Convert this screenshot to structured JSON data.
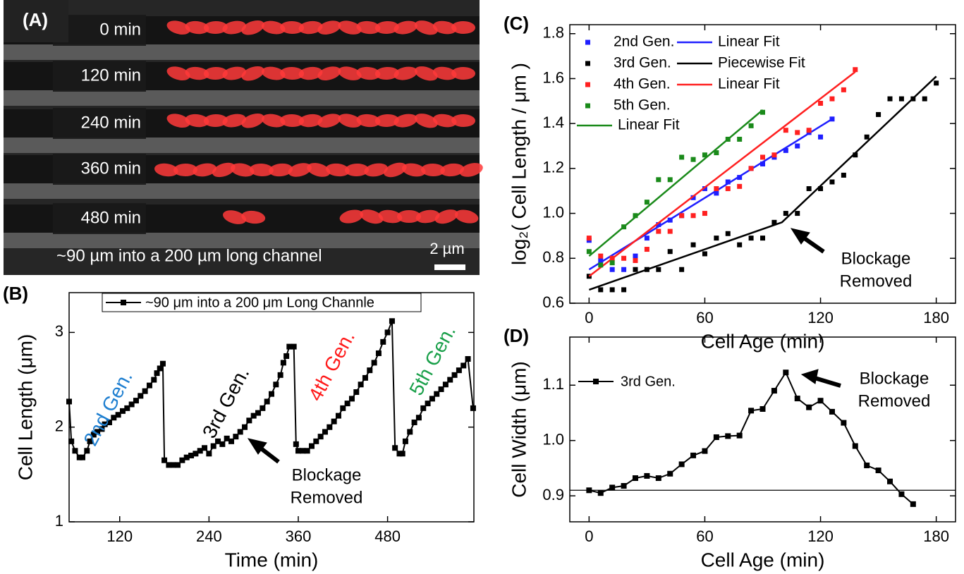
{
  "chart_data": [
    {
      "type": "image",
      "label": "(A)",
      "rows": [
        "0 min",
        "120 min",
        "240 min",
        "360 min",
        "480 min"
      ],
      "caption": "~90 µm into a 200 µm long channel",
      "scale_bar": "2 µm"
    },
    {
      "type": "line",
      "label": "(B)",
      "x_label": "Time (min)",
      "y_label": "Cell Length (μm)",
      "xlim": [
        52,
        596
      ],
      "ylim": [
        1,
        3.42
      ],
      "xticks": [
        120,
        240,
        360,
        480
      ],
      "yticks": [
        1,
        2,
        3
      ],
      "series": [
        {
          "name": "~90 μm into a 200 μm Long Channle",
          "color": "#000000",
          "x": [
            52,
            55,
            60,
            66,
            70,
            76,
            80,
            85,
            90,
            96,
            100,
            106,
            112,
            118,
            124,
            130,
            136,
            142,
            148,
            154,
            160,
            166,
            170,
            174,
            178,
            180,
            186,
            192,
            198,
            204,
            210,
            216,
            222,
            228,
            234,
            240,
            246,
            252,
            258,
            264,
            270,
            276,
            282,
            288,
            294,
            300,
            306,
            312,
            318,
            324,
            330,
            336,
            340,
            344,
            348,
            354,
            357,
            360,
            366,
            372,
            378,
            384,
            390,
            396,
            402,
            408,
            414,
            420,
            426,
            432,
            438,
            444,
            450,
            456,
            462,
            468,
            474,
            480,
            486,
            490,
            496,
            500,
            504,
            510,
            516,
            522,
            528,
            534,
            540,
            546,
            552,
            558,
            564,
            570,
            576,
            582,
            588,
            595
          ],
          "values": [
            2.27,
            1.85,
            1.75,
            1.68,
            1.68,
            1.75,
            1.85,
            1.92,
            1.95,
            1.98,
            2.03,
            2.05,
            2.1,
            2.13,
            2.17,
            2.2,
            2.24,
            2.28,
            2.33,
            2.38,
            2.44,
            2.5,
            2.57,
            2.62,
            2.67,
            1.65,
            1.6,
            1.6,
            1.6,
            1.65,
            1.68,
            1.7,
            1.72,
            1.75,
            1.78,
            1.72,
            1.8,
            1.85,
            1.82,
            1.88,
            1.85,
            1.9,
            1.95,
            2.0,
            2.07,
            2.12,
            2.15,
            2.2,
            2.27,
            2.35,
            2.45,
            2.55,
            2.68,
            2.75,
            2.85,
            2.85,
            1.82,
            1.75,
            1.75,
            1.75,
            1.8,
            1.85,
            1.9,
            1.95,
            2.0,
            2.06,
            2.12,
            2.2,
            2.25,
            2.3,
            2.37,
            2.45,
            2.52,
            2.6,
            2.68,
            2.78,
            2.9,
            3.0,
            3.12,
            1.78,
            1.72,
            1.72,
            1.85,
            1.95,
            2.05,
            2.1,
            2.2,
            2.25,
            2.3,
            2.35,
            2.4,
            2.45,
            2.5,
            2.55,
            2.6,
            2.65,
            2.72,
            2.2
          ]
        }
      ],
      "annotations": [
        {
          "text": "2nd Gen.",
          "color": "#1f7fd0"
        },
        {
          "text": "3rd Gen.",
          "color": "#000000"
        },
        {
          "text": "4th Gen.",
          "color": "#ff1a1a"
        },
        {
          "text": "5th Gen.",
          "color": "#1aa04a"
        }
      ],
      "arrow_text": [
        "Blockage",
        "Removed"
      ]
    },
    {
      "type": "scatter",
      "label": "(C)",
      "x_label": "Cell Age (min)",
      "y_label": "log₂( Cell Length / μm )",
      "xlim": [
        -10,
        190
      ],
      "ylim": [
        0.6,
        1.84
      ],
      "xticks": [
        0,
        60,
        120,
        180
      ],
      "yticks": [
        0.6,
        0.8,
        {
          "value": 1,
          "label": "1.0"
        },
        1.2,
        1.4,
        1.6,
        1.8
      ],
      "series": [
        {
          "name": "2nd Gen.",
          "color": "#1f1fff",
          "style": "markers",
          "x": [
            0,
            6,
            12,
            18,
            24,
            30,
            36,
            42,
            48,
            54,
            60,
            66,
            72,
            78,
            84,
            90,
            96,
            102,
            108,
            114,
            120,
            126
          ],
          "values": [
            0.88,
            0.79,
            0.75,
            0.75,
            0.81,
            0.89,
            0.95,
            0.97,
            0.99,
            1.07,
            1.11,
            1.09,
            1.14,
            1.16,
            1.2,
            1.22,
            1.25,
            1.28,
            1.3,
            1.36,
            1.34,
            1.42
          ]
        },
        {
          "name": "Linear Fit",
          "color": "#1f1fff",
          "style": "line",
          "x": [
            0,
            126
          ],
          "values": [
            0.75,
            1.42
          ]
        },
        {
          "name": "3rd Gen.",
          "color": "#000000",
          "style": "markers",
          "x": [
            0,
            6,
            12,
            18,
            24,
            30,
            36,
            42,
            48,
            54,
            60,
            66,
            72,
            78,
            84,
            90,
            96,
            102,
            108,
            114,
            120,
            126,
            132,
            138,
            144,
            150,
            156,
            162,
            168,
            174,
            180
          ],
          "values": [
            0.72,
            0.66,
            0.66,
            0.66,
            0.75,
            0.75,
            0.75,
            0.83,
            0.75,
            0.86,
            0.82,
            0.89,
            0.91,
            0.86,
            0.89,
            0.89,
            0.96,
            1.0,
            1.0,
            1.11,
            1.11,
            1.14,
            1.17,
            1.26,
            1.34,
            1.44,
            1.51,
            1.51,
            1.51,
            1.51,
            1.58
          ]
        },
        {
          "name": "Piecewise Fit",
          "color": "#000000",
          "style": "line",
          "x": [
            0,
            100,
            180
          ],
          "values": [
            0.66,
            0.96,
            1.61
          ]
        },
        {
          "name": "4th Gen.",
          "color": "#ff2020",
          "style": "markers",
          "x": [
            0,
            6,
            12,
            18,
            24,
            30,
            36,
            42,
            48,
            54,
            60,
            66,
            72,
            78,
            84,
            90,
            96,
            102,
            108,
            114,
            120,
            126,
            132,
            138
          ],
          "values": [
            0.89,
            0.81,
            0.8,
            0.8,
            0.79,
            0.84,
            0.92,
            0.92,
            0.99,
            0.99,
            1.0,
            1.11,
            1.11,
            1.12,
            1.2,
            1.25,
            1.26,
            1.37,
            1.36,
            1.37,
            1.49,
            1.51,
            1.55,
            1.64
          ]
        },
        {
          "name": "Linear Fit",
          "color": "#ff2020",
          "style": "line",
          "x": [
            0,
            138
          ],
          "values": [
            0.72,
            1.63
          ]
        },
        {
          "name": "5th Gen.",
          "color": "#1a8a1a",
          "style": "markers",
          "x": [
            0,
            6,
            12,
            18,
            24,
            30,
            36,
            42,
            48,
            54,
            60,
            66,
            72,
            78,
            84,
            90
          ],
          "values": [
            0.83,
            0.77,
            0.78,
            0.94,
            0.99,
            1.05,
            1.15,
            1.15,
            1.25,
            1.24,
            1.26,
            1.27,
            1.33,
            1.33,
            1.39,
            1.45
          ]
        },
        {
          "name": "Linear Fit",
          "color": "#1a8a1a",
          "style": "line",
          "x": [
            0,
            90
          ],
          "values": [
            0.81,
            1.46
          ]
        }
      ],
      "arrow_text": [
        "Blockage",
        "Removed"
      ]
    },
    {
      "type": "line",
      "label": "(D)",
      "x_label": "Cell Age (min)",
      "y_label": "Cell Width (μm)",
      "xlim": [
        -10,
        190
      ],
      "ylim": [
        0.853,
        1.187
      ],
      "xticks": [
        0,
        60,
        120,
        180
      ],
      "yticks": [
        0.9,
        {
          "value": 1,
          "label": "1.0"
        },
        1.1
      ],
      "hline": 0.91,
      "series": [
        {
          "name": "3rd Gen.",
          "color": "#000000",
          "x": [
            0,
            6,
            12,
            18,
            24,
            30,
            36,
            42,
            48,
            54,
            60,
            66,
            72,
            78,
            84,
            90,
            96,
            102,
            108,
            114,
            120,
            126,
            132,
            138,
            144,
            150,
            156,
            162,
            168
          ],
          "values": [
            0.91,
            0.905,
            0.915,
            0.918,
            0.932,
            0.936,
            0.932,
            0.94,
            0.957,
            0.973,
            0.981,
            1.006,
            1.008,
            1.009,
            1.054,
            1.057,
            1.09,
            1.123,
            1.076,
            1.06,
            1.072,
            1.052,
            1.032,
            0.99,
            0.955,
            0.946,
            0.926,
            0.903,
            0.885
          ]
        }
      ],
      "arrow_text": [
        "Blockage",
        "Removed"
      ]
    }
  ]
}
